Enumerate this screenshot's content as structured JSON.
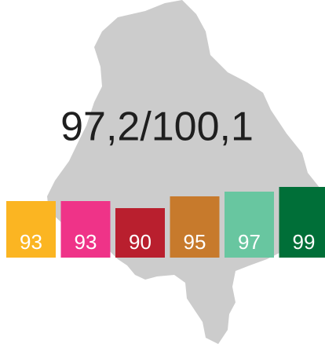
{
  "chart_data": {
    "type": "bar",
    "title": "97,2/100,1",
    "categories": [
      null,
      null,
      null,
      null,
      null,
      null
    ],
    "values": [
      93,
      93,
      90,
      95,
      97,
      99
    ],
    "colors": [
      "#fbb522",
      "#ef3388",
      "#b91f2e",
      "#c77a2c",
      "#68c6a0",
      "#006f38"
    ],
    "ylim": [
      69,
      100
    ]
  }
}
